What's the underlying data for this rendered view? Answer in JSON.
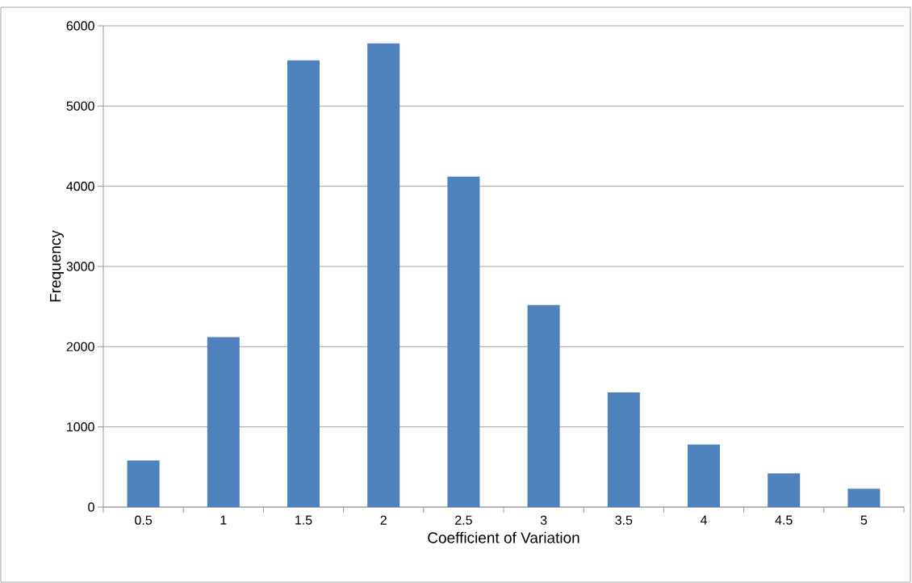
{
  "chart_data": {
    "type": "bar",
    "xlabel": "Coefficient of Variation",
    "ylabel": "Frequency",
    "categories": [
      "0.5",
      "1",
      "1.5",
      "2",
      "2.5",
      "3",
      "3.5",
      "4",
      "4.5",
      "5"
    ],
    "values": [
      580,
      2120,
      5570,
      5780,
      4120,
      2520,
      1430,
      780,
      420,
      230
    ],
    "color": "#4f81bd",
    "ylim": [
      0,
      6000
    ],
    "yticks": [
      0,
      1000,
      2000,
      3000,
      4000,
      5000,
      6000
    ],
    "grid": "y"
  }
}
